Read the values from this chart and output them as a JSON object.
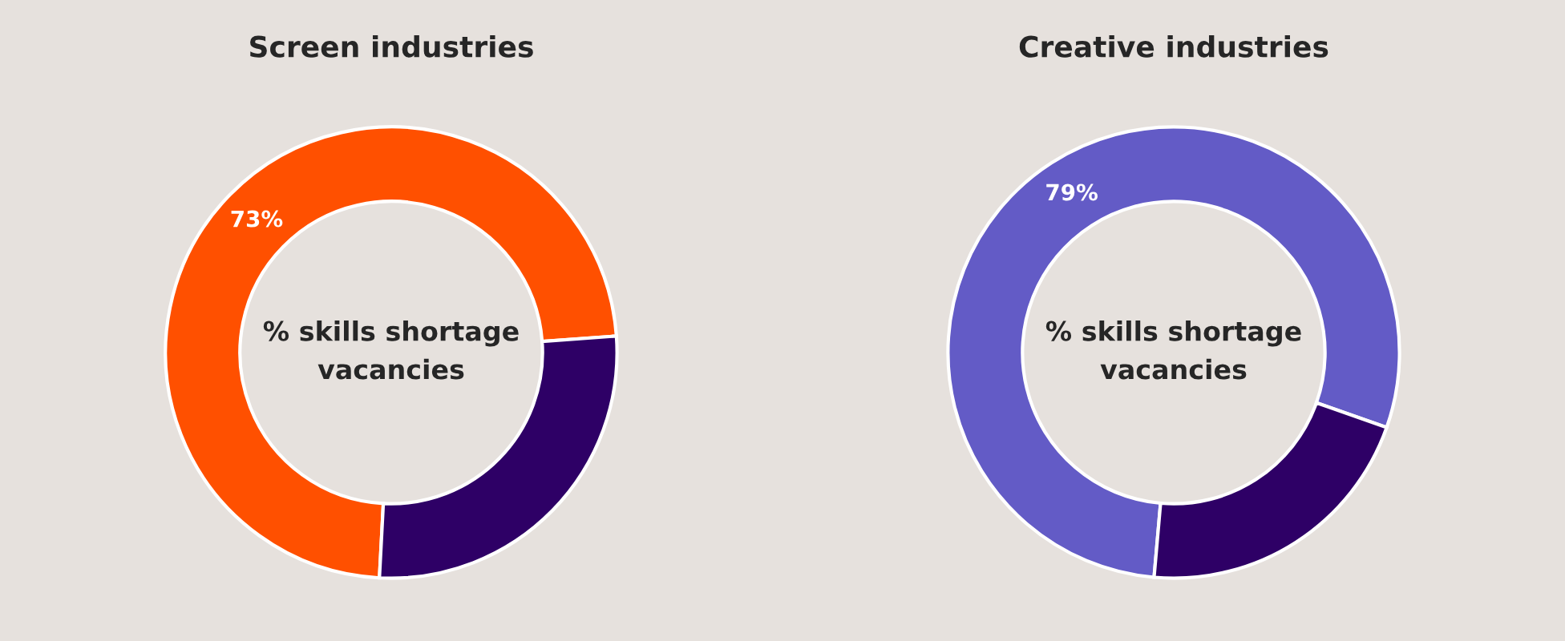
{
  "chart_data": [
    {
      "type": "donut",
      "title": "Screen industries",
      "categories": [
        null,
        null
      ],
      "values": [
        73,
        27
      ],
      "colors": [
        "#ff5000",
        "#2e0066"
      ],
      "value_labels": [
        "73%",
        null
      ],
      "annotations": [
        "% skills shortage vacancies"
      ]
    },
    {
      "type": "donut",
      "title": "Creative industries",
      "categories": [
        null,
        null
      ],
      "values": [
        79,
        21
      ],
      "colors": [
        "#635bc6",
        "#2e0066"
      ],
      "value_labels": [
        "79%",
        null
      ],
      "annotations": [
        "% skills shortage vacancies"
      ]
    }
  ]
}
